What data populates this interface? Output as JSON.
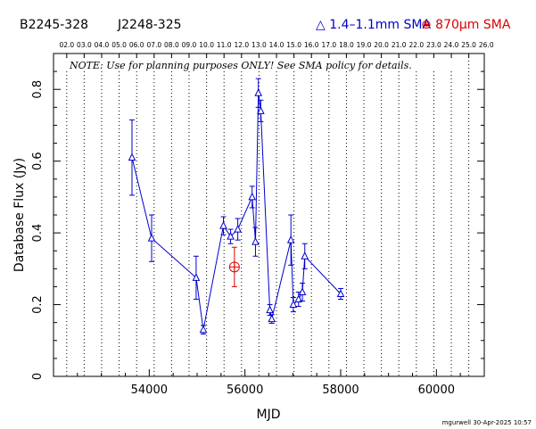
{
  "header": {
    "source_name": "B2245-328",
    "alt_name": "J2248-325",
    "legend_blue": "△ 1.4–1.1mm SMA",
    "legend_red": "⊕ 870μm SMA"
  },
  "note": "NOTE: Use for planning purposes ONLY!  See SMA policy for details.",
  "footer": "mgurwell 30-Apr-2025 10:57",
  "colors": {
    "blue": "#0000cc",
    "red": "#dd0000",
    "axis": "#000000"
  },
  "chart_data": {
    "type": "scatter",
    "xlabel": "MJD",
    "ylabel": "Database Flux (Jy)",
    "xlim": [
      52000,
      61000
    ],
    "ylim": [
      0,
      0.9
    ],
    "x_ticks": [
      54000,
      56000,
      58000,
      60000
    ],
    "x_tick_labels": [
      "54000",
      "56000",
      "58000",
      "60000"
    ],
    "y_ticks": [
      0,
      0.2,
      0.4,
      0.6,
      0.8
    ],
    "y_tick_labels": [
      "0",
      "0.2",
      "0.4",
      "0.6",
      "0.8"
    ],
    "top_axis_labels": [
      "02.0",
      "03.0",
      "04.0",
      "05.0",
      "06.0",
      "07.0",
      "08.0",
      "09.0",
      "10.0",
      "11.0",
      "12.0",
      "13.0",
      "14.0",
      "15.0",
      "16.0",
      "17.0",
      "18.0",
      "19.0",
      "20.0",
      "21.0",
      "22.0",
      "23.0",
      "24.0",
      "25.0",
      "26.0"
    ],
    "top_axis_mjd": [
      52276,
      52641,
      53006,
      53371,
      53737,
      54102,
      54467,
      54832,
      55198,
      55563,
      55928,
      56293,
      56659,
      57024,
      57389,
      57754,
      58120,
      58485,
      58850,
      59215,
      59581,
      59946,
      60311,
      60676,
      61042
    ],
    "grid": "vertical dotted lines at year boundaries",
    "series": [
      {
        "name": "1.4–1.1mm SMA",
        "marker": "triangle",
        "color": "#0000cc",
        "points": [
          {
            "x": 53640,
            "y": 0.61,
            "err": 0.105
          },
          {
            "x": 54050,
            "y": 0.385,
            "err": 0.065
          },
          {
            "x": 54980,
            "y": 0.275,
            "err": 0.06
          },
          {
            "x": 55130,
            "y": 0.13,
            "err": 0.012
          },
          {
            "x": 55550,
            "y": 0.42,
            "err": 0.025
          },
          {
            "x": 55700,
            "y": 0.39,
            "err": 0.02
          },
          {
            "x": 55850,
            "y": 0.41,
            "err": 0.03
          },
          {
            "x": 56150,
            "y": 0.5,
            "err": 0.03
          },
          {
            "x": 56220,
            "y": 0.375,
            "err": 0.04
          },
          {
            "x": 56280,
            "y": 0.79,
            "err": 0.04
          },
          {
            "x": 56330,
            "y": 0.74,
            "err": 0.03
          },
          {
            "x": 56520,
            "y": 0.185,
            "err": 0.015
          },
          {
            "x": 56560,
            "y": 0.16,
            "err": 0.012
          },
          {
            "x": 56960,
            "y": 0.38,
            "err": 0.07
          },
          {
            "x": 57010,
            "y": 0.2,
            "err": 0.02
          },
          {
            "x": 57120,
            "y": 0.215,
            "err": 0.02
          },
          {
            "x": 57200,
            "y": 0.235,
            "err": 0.025
          },
          {
            "x": 57250,
            "y": 0.335,
            "err": 0.035
          },
          {
            "x": 58000,
            "y": 0.23,
            "err": 0.015
          }
        ]
      },
      {
        "name": "870μm SMA",
        "marker": "circled-plus",
        "color": "#dd0000",
        "points": [
          {
            "x": 55780,
            "y": 0.305,
            "err": 0.055
          }
        ]
      }
    ]
  }
}
